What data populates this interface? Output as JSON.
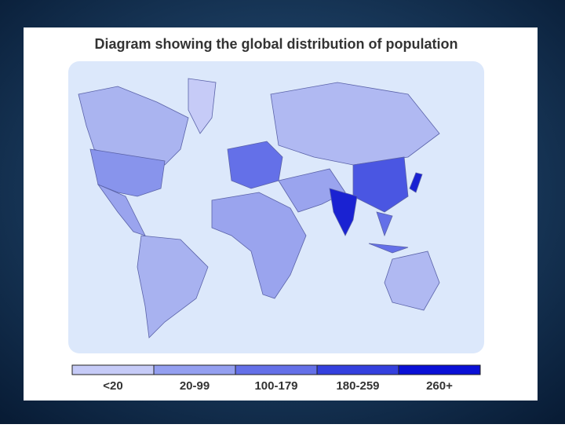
{
  "title": "Diagram showing the global distribution of population",
  "legend": [
    {
      "label": "<20",
      "color": "#c6cbf7"
    },
    {
      "label": "20-99",
      "color": "#949ff0"
    },
    {
      "label": "100-179",
      "color": "#6470e8"
    },
    {
      "label": "180-259",
      "color": "#3440de"
    },
    {
      "label": "260+",
      "color": "#0a10d6"
    }
  ]
}
